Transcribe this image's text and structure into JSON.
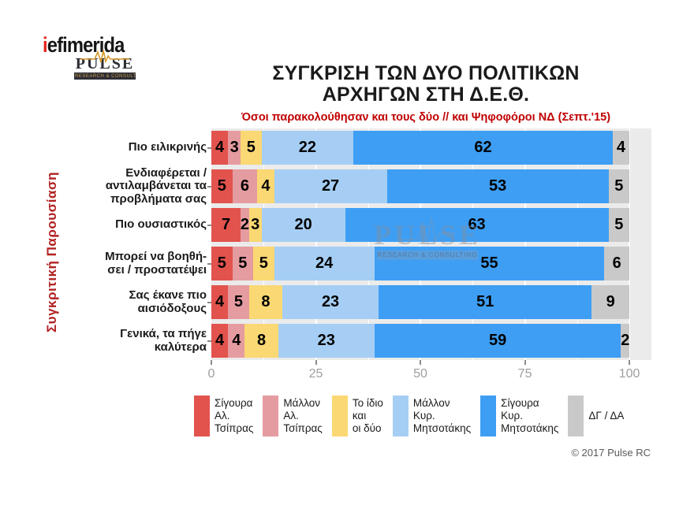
{
  "header": {
    "brand": "iefimerida",
    "brand_i": "i",
    "brand_rest": "efimerida",
    "pulse_name": "PULSE",
    "pulse_tagline": "RESEARCH & CONSULTING",
    "title_line1": "ΣΥΓΚΡΙΣΗ ΤΩΝ ΔΥΟ ΠΟΛΙΤΙΚΩΝ",
    "title_line2": "ΑΡΧΗΓΩΝ ΣΤΗ Δ.Ε.Θ.",
    "subtitle": "Όσοι παρακολούθησαν και τους δύο // και Ψηφοφόροι ΝΔ (Σεπτ.'15)"
  },
  "chart_data": {
    "type": "bar",
    "orientation": "horizontal-stacked",
    "axis_title_y": "Συγκριτική  Παρουσίαση",
    "categories": [
      "Πιο ειλικρινής",
      "Ενδιαφέρεται /\nαντιλαμβάνεται τα\nπροβλήματα σας",
      "Πιο ουσιαστικός",
      "Μπορεί να βοηθή-\nσει / προστατέψει",
      "Σας έκανε πιο\nαισιόδοξους",
      "Γενικά, τα πήγε\nκαλύτερα"
    ],
    "series": [
      {
        "name": "Σίγουρα Αλ. Τσίπρας",
        "legend_label": "Σίγουρα\nΑλ.\nΤσίπρας",
        "color": "#e2534d",
        "values": [
          4,
          5,
          7,
          5,
          4,
          4
        ]
      },
      {
        "name": "Μάλλον Αλ. Τσίπρας",
        "legend_label": "Μάλλον\nΑλ.\nΤσίπρας",
        "color": "#e59ca0",
        "values": [
          3,
          6,
          2,
          5,
          5,
          4
        ]
      },
      {
        "name": "Το ίδιο και οι δύο",
        "legend_label": "Το ίδιο\nκαι\nοι δύο",
        "color": "#fad873",
        "values": [
          5,
          4,
          3,
          5,
          8,
          8
        ]
      },
      {
        "name": "Μάλλον Κυρ. Μητσοτάκης",
        "legend_label": "Μάλλον\nΚυρ.\nΜητσοτάκης",
        "color": "#a6cef4",
        "values": [
          22,
          27,
          20,
          24,
          23,
          23
        ]
      },
      {
        "name": "Σίγουρα Κυρ. Μητσοτάκης",
        "legend_label": "Σίγουρα\nΚυρ.\nΜητσοτάκης",
        "color": "#3e9ef4",
        "values": [
          62,
          53,
          63,
          55,
          51,
          59
        ]
      },
      {
        "name": "ΔΓ / ΔΑ",
        "legend_label": "ΔΓ / ΔΑ",
        "color": "#c9c9c9",
        "values": [
          4,
          5,
          5,
          6,
          9,
          2
        ]
      }
    ],
    "x_ticks": [
      0,
      25,
      50,
      75,
      100
    ],
    "xlim": [
      0,
      105
    ],
    "grid": true,
    "legend_position": "bottom",
    "panel_color": "#ebebeb",
    "value_label_color": "#000000"
  },
  "watermark": {
    "name": "PULSE",
    "tagline": "RESEARCH & CONSULTING"
  },
  "footer": {
    "copyright": "© 2017 Pulse RC"
  }
}
